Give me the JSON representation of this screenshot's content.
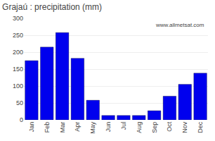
{
  "chart_data": {
    "type": "bar",
    "title": "Grajaú : precipitation (mm)",
    "categories": [
      "Jan",
      "Feb",
      "Mar",
      "Apr",
      "May",
      "Jun",
      "Jul",
      "Aug",
      "Sep",
      "Oct",
      "Nov",
      "Dec"
    ],
    "values": [
      175,
      215,
      258,
      182,
      58,
      13,
      13,
      13,
      27,
      70,
      105,
      138
    ],
    "color": "#0000ee",
    "ylim": [
      0,
      300
    ],
    "yticks": [
      0,
      50,
      100,
      150,
      200,
      250,
      300
    ],
    "grid": true,
    "annotations": [
      "www.allmetsat.com"
    ]
  }
}
